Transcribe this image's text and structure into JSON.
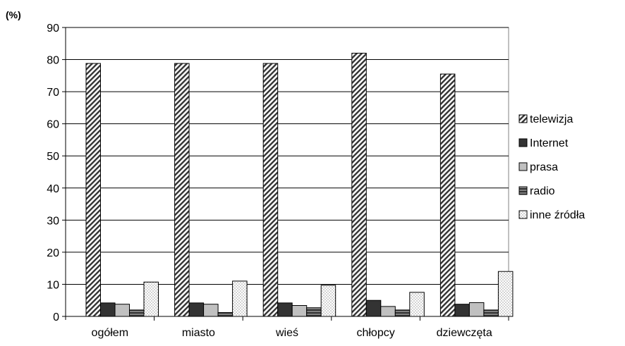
{
  "chart_data": {
    "type": "bar",
    "unit_label": "(%)",
    "categories": [
      "ogółem",
      "miasto",
      "wieś",
      "chłopcy",
      "dziewczęta"
    ],
    "series": [
      {
        "name": "telewizja",
        "pattern": "diagonal-hatch",
        "values": [
          78.8,
          78.8,
          78.8,
          82,
          75.5
        ]
      },
      {
        "name": "Internet",
        "pattern": "solid-dark",
        "color": "#333333",
        "values": [
          4.2,
          4.2,
          4.2,
          5,
          3.8
        ]
      },
      {
        "name": "prasa",
        "pattern": "solid-light",
        "color": "#c0c0c0",
        "values": [
          3.8,
          3.8,
          3.4,
          3.1,
          4.3
        ]
      },
      {
        "name": "radio",
        "pattern": "horizontal-stripes",
        "color": "#333333",
        "values": [
          2,
          1.2,
          2.7,
          2,
          2
        ]
      },
      {
        "name": "inne źródła",
        "pattern": "dotted",
        "values": [
          10.7,
          11,
          9.7,
          7.5,
          14
        ]
      }
    ],
    "ylim": [
      0,
      90
    ],
    "yticks": [
      0,
      10,
      20,
      30,
      40,
      50,
      60,
      70,
      80,
      90
    ],
    "grid": true,
    "legend_position": "right"
  }
}
